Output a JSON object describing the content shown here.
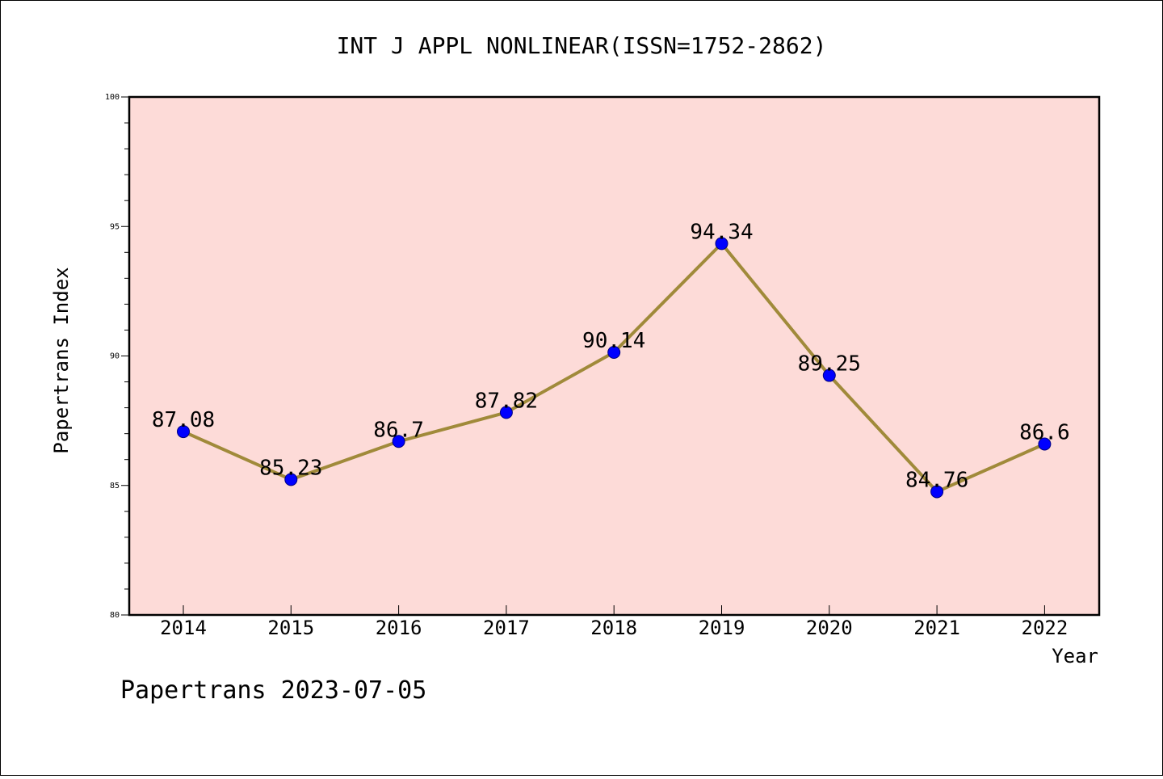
{
  "chart_data": {
    "type": "line",
    "title": "INT J APPL NONLINEAR(ISSN=1752-2862)",
    "xlabel": "Year",
    "ylabel": "Papertrans Index",
    "categories": [
      "2014",
      "2015",
      "2016",
      "2017",
      "2018",
      "2019",
      "2020",
      "2021",
      "2022"
    ],
    "series": [
      {
        "values": [
          87.08,
          85.23,
          86.7,
          87.82,
          90.14,
          94.34,
          89.25,
          84.76,
          86.6
        ],
        "labels": [
          "87.08",
          "85.23",
          "86.7",
          "87.82",
          "90.14",
          "94.34",
          "89.25",
          "84.76",
          "86.6"
        ]
      }
    ],
    "ylim": [
      80,
      100
    ],
    "yticks": [
      "80",
      "85",
      "90",
      "95",
      "100"
    ],
    "grid": false,
    "legend": "none",
    "footer": "Papertrans 2023-07-05",
    "colors": {
      "plot_background": "#fddbd8",
      "line": "#a08a3a",
      "marker": "#0000ff",
      "axis": "#000000"
    }
  }
}
